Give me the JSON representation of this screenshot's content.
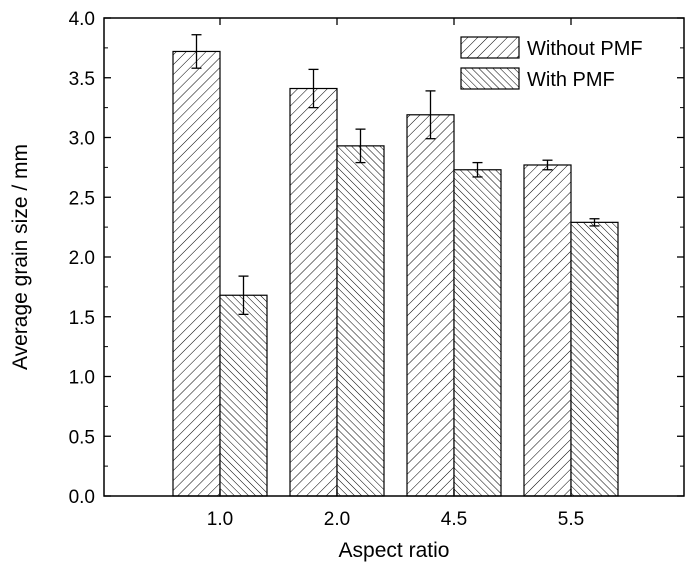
{
  "chart_data": {
    "type": "bar",
    "xlabel": "Aspect ratio",
    "ylabel": "Average grain size / mm",
    "categories": [
      "1.0",
      "2.0",
      "4.5",
      "5.5"
    ],
    "ylim": [
      0.0,
      4.0
    ],
    "yticks": [
      "0.0",
      "0.5",
      "1.0",
      "1.5",
      "2.0",
      "2.5",
      "3.0",
      "3.5",
      "4.0"
    ],
    "series": [
      {
        "name": "Without PMF",
        "pattern": "diagonal-up",
        "values": [
          3.72,
          3.41,
          3.19,
          2.77
        ],
        "errors": [
          0.14,
          0.16,
          0.2,
          0.04
        ]
      },
      {
        "name": "With PMF",
        "pattern": "diagonal-down",
        "values": [
          1.68,
          2.93,
          2.73,
          2.29
        ],
        "errors": [
          0.16,
          0.14,
          0.06,
          0.03
        ]
      }
    ],
    "legend": "top-right",
    "grid": false,
    "colors": {
      "stroke": "#000000",
      "fill": "#ffffff"
    }
  }
}
